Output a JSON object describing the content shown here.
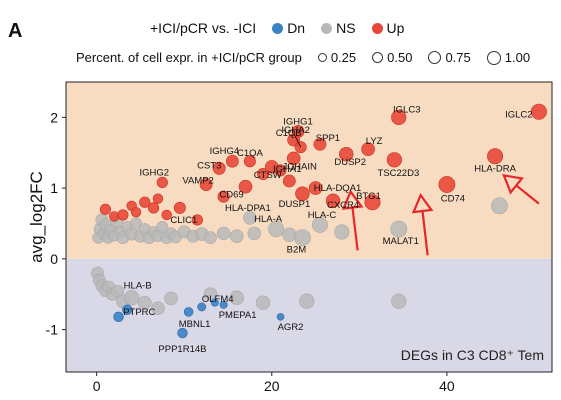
{
  "panel_letter": "A",
  "legend": {
    "color_title": "+ICI/pCR vs. -ICI",
    "color_items": [
      {
        "label": "Dn",
        "color": "#3b82c4"
      },
      {
        "label": "NS",
        "color": "#b8b8b8"
      },
      {
        "label": "Up",
        "color": "#e8483a"
      }
    ],
    "size_title": "Percent. of  cell expr. in +ICI/pCR group",
    "size_items": [
      "0.25",
      "0.50",
      "0.75",
      "1.00"
    ]
  },
  "chart_data": {
    "type": "scatter",
    "title": "",
    "xlabel": "",
    "ylabel": "avg_log2FC",
    "xlim": [
      -3.5,
      52
    ],
    "ylim": [
      -1.6,
      2.5
    ],
    "x_ticks": [
      "0",
      "20",
      "40"
    ],
    "x_tick_values": [
      0,
      20,
      40
    ],
    "y_ticks": [
      "-1",
      "0",
      "1",
      "2"
    ],
    "y_tick_values": [
      -1,
      0,
      1,
      2
    ],
    "grid": false,
    "background_up_color": "#f8dcc2",
    "background_down_color": "#d9d8e6",
    "annotation": "DEGs in C3 CD8⁺ Tem",
    "labeled_points": [
      {
        "label": "IGHG1",
        "x": 23.0,
        "y": 1.8,
        "group": "Up",
        "pct": 0.45
      },
      {
        "label": "IGLC3",
        "x": 34.5,
        "y": 2.0,
        "group": "Up",
        "pct": 0.6
      },
      {
        "label": "IGLC2",
        "x": 50.5,
        "y": 2.08,
        "group": "Up",
        "pct": 0.65
      },
      {
        "label": "IGHA2",
        "x": 22.5,
        "y": 1.68,
        "group": "Up",
        "pct": 0.45
      },
      {
        "label": "C1QB",
        "x": 23.3,
        "y": 1.58,
        "group": "Up",
        "pct": 0.4
      },
      {
        "label": "SPP1",
        "x": 25.5,
        "y": 1.62,
        "group": "Up",
        "pct": 0.45
      },
      {
        "label": "LYZ",
        "x": 31.0,
        "y": 1.55,
        "group": "Up",
        "pct": 0.5
      },
      {
        "label": "IGHG4",
        "x": 15.5,
        "y": 1.38,
        "group": "Up",
        "pct": 0.45
      },
      {
        "label": "C1QA",
        "x": 17.5,
        "y": 1.38,
        "group": "Up",
        "pct": 0.4
      },
      {
        "label": "JCHAIN",
        "x": 22.5,
        "y": 1.42,
        "group": "Up",
        "pct": 0.5
      },
      {
        "label": "DUSP2",
        "x": 28.5,
        "y": 1.48,
        "group": "Up",
        "pct": 0.55
      },
      {
        "label": "CST3",
        "x": 14.0,
        "y": 1.28,
        "group": "Up",
        "pct": 0.45
      },
      {
        "label": "CTSW",
        "x": 20.0,
        "y": 1.3,
        "group": "Up",
        "pct": 0.5
      },
      {
        "label": "TSC22D3",
        "x": 34.0,
        "y": 1.4,
        "group": "Up",
        "pct": 0.6
      },
      {
        "label": "HLA-DRA",
        "x": 45.5,
        "y": 1.45,
        "group": "Up",
        "pct": 0.65
      },
      {
        "label": "IGHG2",
        "x": 7.5,
        "y": 1.08,
        "group": "Up",
        "pct": 0.35
      },
      {
        "label": "VAMP2",
        "x": 12.5,
        "y": 1.05,
        "group": "Up",
        "pct": 0.45
      },
      {
        "label": "IGHA1",
        "x": 22.0,
        "y": 1.1,
        "group": "Up",
        "pct": 0.45
      },
      {
        "label": "CD69",
        "x": 17.0,
        "y": 1.02,
        "group": "Up",
        "pct": 0.5
      },
      {
        "label": "HLA-DQA1",
        "x": 25.0,
        "y": 1.0,
        "group": "Up",
        "pct": 0.5
      },
      {
        "label": "DUSP1",
        "x": 23.5,
        "y": 0.92,
        "group": "Up",
        "pct": 0.55
      },
      {
        "label": "CD74",
        "x": 40.0,
        "y": 1.05,
        "group": "Up",
        "pct": 0.7
      },
      {
        "label": "CXCR4",
        "x": 27.0,
        "y": 0.82,
        "group": "Up",
        "pct": 0.55
      },
      {
        "label": "BTG1",
        "x": 31.5,
        "y": 0.8,
        "group": "Up",
        "pct": 0.65
      },
      {
        "label": "CLIC1",
        "x": 9.5,
        "y": 0.72,
        "group": "Up",
        "pct": 0.4
      },
      {
        "label": "HLA-DPA1",
        "x": 17.5,
        "y": 0.58,
        "group": "NS",
        "pct": 0.5
      },
      {
        "label": "HLA-C",
        "x": 25.5,
        "y": 0.48,
        "group": "NS",
        "pct": 0.65
      },
      {
        "label": "HLA-A",
        "x": 20.5,
        "y": 0.42,
        "group": "NS",
        "pct": 0.65
      },
      {
        "label": "MALAT1",
        "x": 34.5,
        "y": 0.42,
        "group": "NS",
        "pct": 0.7
      },
      {
        "label": "B2M",
        "x": 23.5,
        "y": 0.3,
        "group": "NS",
        "pct": 0.7
      },
      {
        "label": "HLA-B",
        "x": 4.0,
        "y": -0.55,
        "group": "NS",
        "pct": 0.6
      },
      {
        "label": "PTPRC",
        "x": 3.5,
        "y": -0.72,
        "group": "Dn",
        "pct": 0.3
      },
      {
        "label": "OLFM4",
        "x": 12.0,
        "y": -0.68,
        "group": "Dn",
        "pct": 0.2
      },
      {
        "label": "PMEPA1",
        "x": 14.5,
        "y": -0.65,
        "group": "Dn",
        "pct": 0.15
      },
      {
        "label": "MBNL1",
        "x": 10.5,
        "y": -0.75,
        "group": "Dn",
        "pct": 0.25
      },
      {
        "label": "AGR2",
        "x": 21.0,
        "y": -0.82,
        "group": "Dn",
        "pct": 0.12
      },
      {
        "label": "PPP1R14B",
        "x": 9.8,
        "y": -1.05,
        "group": "Dn",
        "pct": 0.3
      }
    ],
    "other_points": [
      {
        "x": 0.2,
        "y": 0.3,
        "group": "NS",
        "pct": 0.4
      },
      {
        "x": 0.4,
        "y": 0.42,
        "group": "NS",
        "pct": 0.45
      },
      {
        "x": 0.6,
        "y": 0.55,
        "group": "NS",
        "pct": 0.45
      },
      {
        "x": 0.8,
        "y": 0.35,
        "group": "NS",
        "pct": 0.4
      },
      {
        "x": 1.0,
        "y": 0.48,
        "group": "NS",
        "pct": 0.45
      },
      {
        "x": 1.3,
        "y": 0.3,
        "group": "NS",
        "pct": 0.4
      },
      {
        "x": 1.6,
        "y": 0.4,
        "group": "NS",
        "pct": 0.45
      },
      {
        "x": 2.0,
        "y": 0.33,
        "group": "NS",
        "pct": 0.4
      },
      {
        "x": 2.3,
        "y": 0.52,
        "group": "NS",
        "pct": 0.45
      },
      {
        "x": 2.7,
        "y": 0.38,
        "group": "NS",
        "pct": 0.4
      },
      {
        "x": 3.0,
        "y": 0.3,
        "group": "NS",
        "pct": 0.45
      },
      {
        "x": 3.5,
        "y": 0.45,
        "group": "NS",
        "pct": 0.4
      },
      {
        "x": 4.0,
        "y": 0.35,
        "group": "NS",
        "pct": 0.45
      },
      {
        "x": 4.5,
        "y": 0.5,
        "group": "NS",
        "pct": 0.4
      },
      {
        "x": 5.0,
        "y": 0.32,
        "group": "NS",
        "pct": 0.45
      },
      {
        "x": 5.5,
        "y": 0.42,
        "group": "NS",
        "pct": 0.4
      },
      {
        "x": 6.0,
        "y": 0.3,
        "group": "NS",
        "pct": 0.45
      },
      {
        "x": 6.5,
        "y": 0.38,
        "group": "NS",
        "pct": 0.4
      },
      {
        "x": 7.0,
        "y": 0.33,
        "group": "NS",
        "pct": 0.45
      },
      {
        "x": 7.5,
        "y": 0.45,
        "group": "NS",
        "pct": 0.4
      },
      {
        "x": 8.0,
        "y": 0.3,
        "group": "NS",
        "pct": 0.45
      },
      {
        "x": 8.5,
        "y": 0.36,
        "group": "NS",
        "pct": 0.4
      },
      {
        "x": 9.0,
        "y": 0.31,
        "group": "NS",
        "pct": 0.45
      },
      {
        "x": 10.0,
        "y": 0.38,
        "group": "NS",
        "pct": 0.45
      },
      {
        "x": 11.0,
        "y": 0.32,
        "group": "NS",
        "pct": 0.45
      },
      {
        "x": 12.0,
        "y": 0.35,
        "group": "NS",
        "pct": 0.5
      },
      {
        "x": 13.0,
        "y": 0.3,
        "group": "NS",
        "pct": 0.45
      },
      {
        "x": 14.5,
        "y": 0.36,
        "group": "NS",
        "pct": 0.5
      },
      {
        "x": 16.0,
        "y": 0.32,
        "group": "NS",
        "pct": 0.5
      },
      {
        "x": 18.0,
        "y": 0.36,
        "group": "NS",
        "pct": 0.5
      },
      {
        "x": 22.0,
        "y": 0.34,
        "group": "NS",
        "pct": 0.55
      },
      {
        "x": 28.0,
        "y": 0.38,
        "group": "NS",
        "pct": 0.6
      },
      {
        "x": 46.0,
        "y": 0.75,
        "group": "NS",
        "pct": 0.7
      },
      {
        "x": 1.0,
        "y": 0.7,
        "group": "Up",
        "pct": 0.35
      },
      {
        "x": 2.0,
        "y": 0.6,
        "group": "Up",
        "pct": 0.3
      },
      {
        "x": 3.0,
        "y": 0.62,
        "group": "Up",
        "pct": 0.35
      },
      {
        "x": 4.0,
        "y": 0.75,
        "group": "Up",
        "pct": 0.3
      },
      {
        "x": 4.5,
        "y": 0.66,
        "group": "Up",
        "pct": 0.3
      },
      {
        "x": 5.5,
        "y": 0.8,
        "group": "Up",
        "pct": 0.35
      },
      {
        "x": 6.5,
        "y": 0.72,
        "group": "Up",
        "pct": 0.35
      },
      {
        "x": 7.0,
        "y": 0.85,
        "group": "Up",
        "pct": 0.3
      },
      {
        "x": 8.0,
        "y": 0.62,
        "group": "Up",
        "pct": 0.3
      },
      {
        "x": 11.5,
        "y": 0.55,
        "group": "Up",
        "pct": 0.35
      },
      {
        "x": 14.5,
        "y": 0.88,
        "group": "Up",
        "pct": 0.4
      },
      {
        "x": 19.0,
        "y": 1.2,
        "group": "Up",
        "pct": 0.4
      },
      {
        "x": 21.0,
        "y": 1.25,
        "group": "Up",
        "pct": 0.4
      },
      {
        "x": 0.1,
        "y": -0.2,
        "group": "NS",
        "pct": 0.45
      },
      {
        "x": 0.3,
        "y": -0.3,
        "group": "NS",
        "pct": 0.45
      },
      {
        "x": 0.6,
        "y": -0.38,
        "group": "NS",
        "pct": 0.45
      },
      {
        "x": 1.0,
        "y": -0.45,
        "group": "NS",
        "pct": 0.45
      },
      {
        "x": 1.4,
        "y": -0.4,
        "group": "NS",
        "pct": 0.45
      },
      {
        "x": 1.8,
        "y": -0.5,
        "group": "NS",
        "pct": 0.45
      },
      {
        "x": 2.4,
        "y": -0.46,
        "group": "NS",
        "pct": 0.45
      },
      {
        "x": 3.0,
        "y": -0.6,
        "group": "NS",
        "pct": 0.5
      },
      {
        "x": 5.5,
        "y": -0.62,
        "group": "NS",
        "pct": 0.5
      },
      {
        "x": 7.0,
        "y": -0.7,
        "group": "NS",
        "pct": 0.5
      },
      {
        "x": 8.5,
        "y": -0.56,
        "group": "NS",
        "pct": 0.5
      },
      {
        "x": 13.0,
        "y": -0.5,
        "group": "NS",
        "pct": 0.5
      },
      {
        "x": 16.0,
        "y": -0.55,
        "group": "NS",
        "pct": 0.55
      },
      {
        "x": 19.0,
        "y": -0.62,
        "group": "NS",
        "pct": 0.55
      },
      {
        "x": 24.0,
        "y": -0.6,
        "group": "NS",
        "pct": 0.6
      },
      {
        "x": 34.5,
        "y": -0.6,
        "group": "NS",
        "pct": 0.6
      },
      {
        "x": 2.5,
        "y": -0.82,
        "group": "Dn",
        "pct": 0.3
      },
      {
        "x": 13.5,
        "y": -0.62,
        "group": "Dn",
        "pct": 0.15
      }
    ],
    "arrows": [
      {
        "tip_x": 29.0,
        "tip_y": 0.95,
        "from_x": 29.8,
        "from_y": 0.12
      },
      {
        "tip_x": 37.0,
        "tip_y": 0.9,
        "from_x": 37.8,
        "from_y": 0.05
      },
      {
        "tip_x": 46.5,
        "tip_y": 1.18,
        "from_x": 50.5,
        "from_y": 0.78
      }
    ],
    "leader_lines": [
      {
        "label": "C1QB",
        "x1": 23.3,
        "y1": 1.58,
        "x2": 22.6,
        "y2": 1.75
      }
    ]
  }
}
